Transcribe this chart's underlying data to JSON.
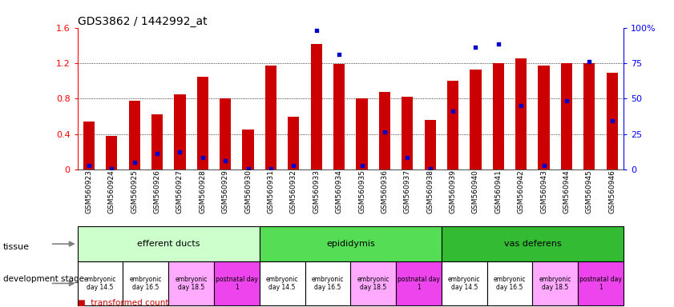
{
  "title": "GDS3862 / 1442992_at",
  "samples": [
    "GSM560923",
    "GSM560924",
    "GSM560925",
    "GSM560926",
    "GSM560927",
    "GSM560928",
    "GSM560929",
    "GSM560930",
    "GSM560931",
    "GSM560932",
    "GSM560933",
    "GSM560934",
    "GSM560935",
    "GSM560936",
    "GSM560937",
    "GSM560938",
    "GSM560939",
    "GSM560940",
    "GSM560941",
    "GSM560942",
    "GSM560943",
    "GSM560944",
    "GSM560945",
    "GSM560946"
  ],
  "red_bars": [
    0.54,
    0.38,
    0.78,
    0.62,
    0.85,
    1.05,
    0.8,
    0.45,
    1.17,
    0.6,
    1.42,
    1.19,
    0.8,
    0.88,
    0.82,
    0.56,
    1.0,
    1.13,
    1.2,
    1.25,
    1.17,
    1.2,
    1.2,
    1.09
  ],
  "blue_dots": [
    0.05,
    0.01,
    0.08,
    0.18,
    0.2,
    0.14,
    0.1,
    0.01,
    0.01,
    0.05,
    1.57,
    1.3,
    0.05,
    0.43,
    0.14,
    0.01,
    0.66,
    1.38,
    1.42,
    0.72,
    0.05,
    0.78,
    1.22,
    0.55
  ],
  "ylim_left": [
    0,
    1.6
  ],
  "ylim_right": [
    0,
    100
  ],
  "yticks_left": [
    0.0,
    0.4,
    0.8,
    1.2,
    1.6
  ],
  "yticks_right": [
    0,
    25,
    50,
    75,
    100
  ],
  "ytick_labels_left": [
    "0",
    "0.4",
    "0.8",
    "1.2",
    "1.6"
  ],
  "ytick_labels_right": [
    "0",
    "25",
    "50",
    "75",
    "100%"
  ],
  "bar_color": "#cc0000",
  "dot_color": "#0000cc",
  "tissue_groups": [
    {
      "label": "efferent ducts",
      "start": 0,
      "end": 8,
      "color": "#ccffcc"
    },
    {
      "label": "epididymis",
      "start": 8,
      "end": 16,
      "color": "#55dd55"
    },
    {
      "label": "vas deferens",
      "start": 16,
      "end": 24,
      "color": "#33bb33"
    }
  ],
  "stage_groups": [
    {
      "label": "embryonic\nday 14.5",
      "start": 0,
      "end": 2,
      "color": "#ffffff"
    },
    {
      "label": "embryonic\nday 16.5",
      "start": 2,
      "end": 4,
      "color": "#ffffff"
    },
    {
      "label": "embryonic\nday 18.5",
      "start": 4,
      "end": 6,
      "color": "#ffaaff"
    },
    {
      "label": "postnatal day\n1",
      "start": 6,
      "end": 8,
      "color": "#ee44ee"
    },
    {
      "label": "embryonic\nday 14.5",
      "start": 8,
      "end": 10,
      "color": "#ffffff"
    },
    {
      "label": "embryonic\nday 16.5",
      "start": 10,
      "end": 12,
      "color": "#ffffff"
    },
    {
      "label": "embryonic\nday 18.5",
      "start": 12,
      "end": 14,
      "color": "#ffaaff"
    },
    {
      "label": "postnatal day\n1",
      "start": 14,
      "end": 16,
      "color": "#ee44ee"
    },
    {
      "label": "embryonic\nday 14.5",
      "start": 16,
      "end": 18,
      "color": "#ffffff"
    },
    {
      "label": "embryonic\nday 16.5",
      "start": 18,
      "end": 20,
      "color": "#ffffff"
    },
    {
      "label": "embryonic\nday 18.5",
      "start": 20,
      "end": 22,
      "color": "#ffaaff"
    },
    {
      "label": "postnatal day\n1",
      "start": 22,
      "end": 24,
      "color": "#ee44ee"
    }
  ],
  "bg_color": "#ffffff",
  "bar_width": 0.5
}
